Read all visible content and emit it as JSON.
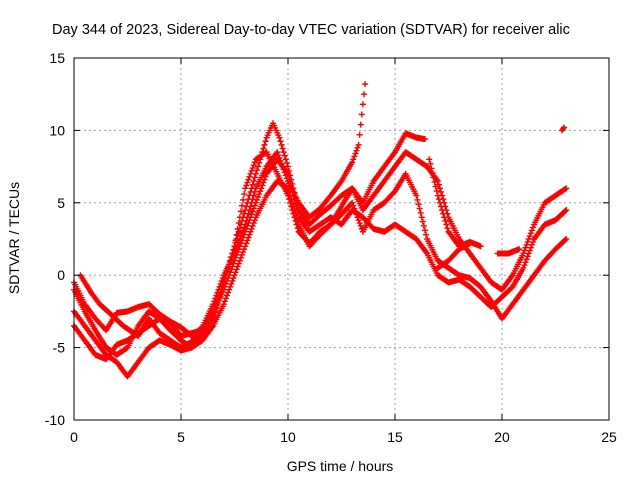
{
  "chart_data": {
    "type": "scatter",
    "title": "Day 344 of 2023, Sidereal Day-to-day VTEC variation (SDTVAR) for receiver alic",
    "xlabel": "GPS time / hours",
    "ylabel": "SDTVAR / TECUs",
    "xlim": [
      0,
      25
    ],
    "ylim": [
      -10,
      15
    ],
    "xticks": [
      0,
      5,
      10,
      15,
      20,
      25
    ],
    "yticks": [
      -10,
      -5,
      0,
      5,
      10,
      15
    ],
    "grid": true,
    "marker": "+",
    "color": "#ff0000",
    "series": [
      {
        "name": "track-1",
        "points": [
          [
            0.0,
            -0.5
          ],
          [
            0.5,
            -2.0
          ],
          [
            1.0,
            -3.0
          ],
          [
            1.5,
            -3.8
          ],
          [
            2.0,
            -2.6
          ],
          [
            2.5,
            -2.5
          ],
          [
            3.0,
            -2.2
          ],
          [
            3.5,
            -2.0
          ],
          [
            4.0,
            -2.7
          ],
          [
            4.5,
            -3.2
          ],
          [
            5.0,
            -3.6
          ],
          [
            5.5,
            -4.2
          ],
          [
            6.0,
            -3.6
          ],
          [
            6.5,
            -2.0
          ],
          [
            7.0,
            0.0
          ],
          [
            7.5,
            1.5
          ],
          [
            8.0,
            3.5
          ],
          [
            8.5,
            6.0
          ],
          [
            9.0,
            7.5
          ],
          [
            9.5,
            8.5
          ],
          [
            10.0,
            6.5
          ],
          [
            10.5,
            5.0
          ],
          [
            11.0,
            4.0
          ],
          [
            11.5,
            4.6
          ],
          [
            12.0,
            5.5
          ],
          [
            12.5,
            6.5
          ],
          [
            13.0,
            7.8
          ],
          [
            13.3,
            9.0
          ],
          [
            13.6,
            13.2
          ]
        ]
      },
      {
        "name": "track-2",
        "points": [
          [
            0.0,
            -1.0
          ],
          [
            0.5,
            -2.5
          ],
          [
            1.0,
            -3.8
          ],
          [
            1.5,
            -5.0
          ],
          [
            2.0,
            -5.5
          ],
          [
            2.5,
            -5.0
          ],
          [
            3.0,
            -3.5
          ],
          [
            3.5,
            -2.5
          ],
          [
            4.0,
            -3.0
          ],
          [
            4.5,
            -3.8
          ],
          [
            5.0,
            -4.5
          ],
          [
            5.5,
            -5.0
          ],
          [
            6.0,
            -4.2
          ],
          [
            6.5,
            -2.8
          ],
          [
            7.0,
            -0.5
          ],
          [
            7.5,
            2.0
          ],
          [
            8.0,
            4.5
          ],
          [
            8.5,
            7.0
          ],
          [
            9.0,
            9.5
          ],
          [
            9.3,
            10.5
          ],
          [
            9.6,
            9.5
          ],
          [
            10.0,
            7.5
          ],
          [
            10.5,
            4.5
          ],
          [
            11.0,
            3.5
          ],
          [
            11.5,
            4.2
          ],
          [
            12.0,
            4.8
          ],
          [
            12.5,
            5.5
          ],
          [
            13.0,
            6.0
          ],
          [
            13.5,
            5.0
          ],
          [
            14.0,
            6.5
          ],
          [
            14.5,
            7.5
          ],
          [
            15.0,
            8.5
          ],
          [
            15.5,
            9.8
          ],
          [
            16.0,
            9.5
          ],
          [
            16.4,
            9.4
          ]
        ]
      },
      {
        "name": "track-3",
        "points": [
          [
            0.0,
            -2.5
          ],
          [
            0.5,
            -3.5
          ],
          [
            1.0,
            -4.5
          ],
          [
            1.5,
            -5.5
          ],
          [
            2.0,
            -6.0
          ],
          [
            2.5,
            -7.0
          ],
          [
            3.0,
            -6.0
          ],
          [
            3.5,
            -5.0
          ],
          [
            4.0,
            -4.5
          ],
          [
            4.5,
            -4.8
          ],
          [
            5.0,
            -5.2
          ],
          [
            5.5,
            -5.0
          ],
          [
            6.0,
            -4.5
          ],
          [
            6.5,
            -3.5
          ],
          [
            7.0,
            -2.0
          ],
          [
            7.5,
            0.0
          ],
          [
            8.0,
            2.0
          ],
          [
            8.5,
            4.0
          ],
          [
            9.0,
            5.5
          ],
          [
            9.5,
            6.5
          ],
          [
            10.0,
            6.0
          ],
          [
            10.5,
            3.5
          ],
          [
            11.0,
            2.0
          ],
          [
            11.5,
            2.8
          ],
          [
            12.0,
            3.5
          ],
          [
            12.5,
            4.2
          ],
          [
            13.0,
            5.0
          ],
          [
            13.5,
            3.0
          ],
          [
            14.0,
            4.5
          ],
          [
            14.5,
            5.0
          ],
          [
            15.0,
            5.8
          ],
          [
            15.5,
            7.0
          ],
          [
            16.0,
            5.5
          ],
          [
            16.5,
            2.5
          ],
          [
            17.0,
            1.0
          ],
          [
            17.5,
            0.5
          ],
          [
            18.0,
            0.0
          ],
          [
            18.5,
            -0.2
          ],
          [
            19.0,
            -0.8
          ],
          [
            19.5,
            -1.8
          ],
          [
            20.0,
            -3.0
          ],
          [
            20.5,
            -2.0
          ],
          [
            21.0,
            -1.0
          ],
          [
            21.5,
            0.0
          ],
          [
            22.0,
            1.0
          ],
          [
            22.5,
            1.8
          ],
          [
            23.0,
            2.5
          ]
        ]
      },
      {
        "name": "track-4",
        "points": [
          [
            0.3,
            0.0
          ],
          [
            0.8,
            -1.2
          ],
          [
            1.2,
            -2.0
          ],
          [
            1.8,
            -2.8
          ],
          [
            2.3,
            -3.5
          ],
          [
            3.0,
            -4.2
          ],
          [
            3.5,
            -3.0
          ],
          [
            4.0,
            -4.0
          ],
          [
            4.5,
            -4.5
          ],
          [
            5.0,
            -5.0
          ],
          [
            5.5,
            -4.6
          ],
          [
            6.0,
            -3.8
          ],
          [
            6.5,
            -2.5
          ],
          [
            7.0,
            -1.0
          ],
          [
            7.5,
            1.0
          ],
          [
            8.0,
            3.0
          ],
          [
            8.5,
            5.0
          ],
          [
            9.0,
            7.0
          ],
          [
            9.5,
            8.0
          ],
          [
            10.0,
            7.0
          ],
          [
            10.5,
            4.0
          ],
          [
            11.0,
            3.0
          ],
          [
            11.5,
            3.5
          ],
          [
            12.0,
            4.0
          ],
          [
            12.5,
            3.5
          ],
          [
            13.0,
            4.5
          ],
          [
            13.5,
            4.0
          ],
          [
            14.0,
            3.2
          ],
          [
            14.5,
            3.0
          ],
          [
            15.0,
            3.5
          ],
          [
            15.5,
            3.0
          ],
          [
            16.0,
            2.5
          ],
          [
            16.5,
            1.5
          ],
          [
            17.0,
            0.0
          ],
          [
            17.5,
            -0.5
          ],
          [
            18.0,
            -0.3
          ],
          [
            18.5,
            -0.8
          ],
          [
            19.0,
            -1.5
          ],
          [
            19.5,
            -2.2
          ],
          [
            20.0,
            -1.5
          ],
          [
            20.5,
            -0.8
          ],
          [
            21.0,
            0.5
          ],
          [
            21.5,
            2.5
          ],
          [
            22.0,
            3.5
          ],
          [
            22.5,
            3.8
          ],
          [
            23.0,
            4.5
          ]
        ]
      },
      {
        "name": "track-5",
        "points": [
          [
            0.0,
            -3.5
          ],
          [
            0.5,
            -4.5
          ],
          [
            1.0,
            -5.5
          ],
          [
            1.5,
            -5.8
          ],
          [
            2.0,
            -4.8
          ],
          [
            2.5,
            -4.5
          ],
          [
            3.0,
            -4.0
          ],
          [
            3.5,
            -3.5
          ],
          [
            4.0,
            -3.0
          ],
          [
            4.5,
            -3.3
          ],
          [
            5.0,
            -4.2
          ],
          [
            5.5,
            -4.0
          ],
          [
            6.0,
            -3.8
          ],
          [
            6.5,
            -3.0
          ],
          [
            7.0,
            -0.5
          ],
          [
            7.5,
            2.0
          ],
          [
            8.0,
            6.0
          ],
          [
            8.5,
            8.0
          ],
          [
            9.0,
            8.5
          ],
          [
            9.5,
            7.0
          ],
          [
            10.0,
            5.5
          ],
          [
            10.5,
            3.0
          ],
          [
            11.0,
            2.2
          ],
          [
            11.5,
            3.0
          ],
          [
            12.0,
            3.5
          ],
          [
            13.0,
            6.0
          ],
          [
            13.5,
            4.5
          ],
          [
            14.0,
            5.5
          ],
          [
            14.5,
            6.5
          ],
          [
            15.0,
            7.5
          ],
          [
            15.5,
            8.5
          ],
          [
            16.0,
            8.0
          ],
          [
            16.5,
            7.5
          ],
          [
            17.0,
            6.5
          ],
          [
            17.5,
            4.0
          ],
          [
            18.0,
            2.5
          ],
          [
            18.5,
            1.5
          ],
          [
            19.0,
            0.5
          ],
          [
            19.5,
            -0.5
          ],
          [
            20.0,
            -1.0
          ],
          [
            20.5,
            0.0
          ],
          [
            21.0,
            1.5
          ],
          [
            21.5,
            3.5
          ],
          [
            22.0,
            5.0
          ],
          [
            22.5,
            5.5
          ],
          [
            23.0,
            6.0
          ]
        ]
      },
      {
        "name": "track-6",
        "points": [
          [
            16.6,
            8.0
          ],
          [
            17.0,
            5.5
          ],
          [
            17.5,
            3.0
          ],
          [
            18.0,
            2.0
          ],
          [
            18.5,
            2.3
          ],
          [
            19.0,
            2.0
          ]
        ]
      },
      {
        "name": "track-7",
        "points": [
          [
            17.0,
            0.5
          ],
          [
            17.5,
            1.0
          ],
          [
            18.0,
            1.8
          ],
          [
            18.5,
            2.2
          ]
        ]
      },
      {
        "name": "track-8",
        "points": [
          [
            19.8,
            1.5
          ],
          [
            20.3,
            1.5
          ],
          [
            20.8,
            1.8
          ]
        ]
      },
      {
        "name": "track-9",
        "points": [
          [
            22.8,
            10.0
          ],
          [
            22.9,
            10.2
          ]
        ]
      }
    ]
  }
}
